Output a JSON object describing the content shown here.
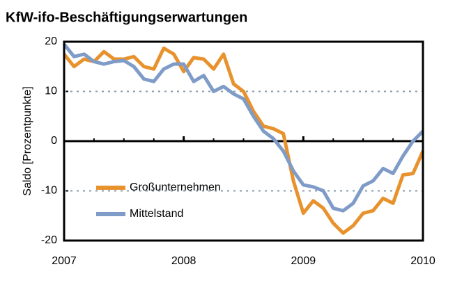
{
  "chart_data": {
    "type": "line",
    "title": "KfW-ifo-Beschäftigungserwartungen",
    "ylabel": "Saldo [Prozentpunkte]",
    "x": [
      2007,
      2007.083,
      2007.167,
      2007.25,
      2007.333,
      2007.417,
      2007.5,
      2007.583,
      2007.667,
      2007.75,
      2007.833,
      2007.917,
      2008,
      2008.083,
      2008.167,
      2008.25,
      2008.333,
      2008.417,
      2008.5,
      2008.583,
      2008.667,
      2008.75,
      2008.833,
      2008.917,
      2009,
      2009.083,
      2009.167,
      2009.25,
      2009.333,
      2009.417,
      2009.5,
      2009.583,
      2009.667,
      2009.75,
      2009.833,
      2009.917,
      2010
    ],
    "series": [
      {
        "name": "Großunternehmen",
        "color": "#e8922e",
        "values": [
          17.5,
          15,
          16.5,
          16,
          18,
          16.5,
          16.5,
          17,
          15,
          14.5,
          18.7,
          17.5,
          14,
          16.8,
          16.5,
          14.5,
          17.5,
          11.5,
          10,
          6,
          3,
          2.5,
          1.5,
          -8,
          -14.5,
          -12,
          -13.5,
          -16.5,
          -18.5,
          -17,
          -14.5,
          -14,
          -11.5,
          -12.5,
          -6.8,
          -6.5,
          -2
        ]
      },
      {
        "name": "Mittelstand",
        "color": "#7f9cc8",
        "values": [
          19.5,
          17,
          17.5,
          16,
          15.5,
          16,
          16.2,
          15,
          12.5,
          12,
          14.5,
          15.5,
          15.5,
          12,
          13.2,
          10,
          11,
          9.5,
          8.5,
          5,
          2,
          0.5,
          -2,
          -6,
          -8.8,
          -9.2,
          -10,
          -13.5,
          -14,
          -12.5,
          -9,
          -8,
          -5.5,
          -6.5,
          -3,
          0,
          2
        ]
      }
    ],
    "xlim": [
      2007,
      2010
    ],
    "xticks": [
      2007,
      2008,
      2009,
      2010
    ],
    "ylim": [
      -20,
      20
    ],
    "yticks": [
      -20,
      -10,
      0,
      10,
      20
    ],
    "grid": true
  }
}
